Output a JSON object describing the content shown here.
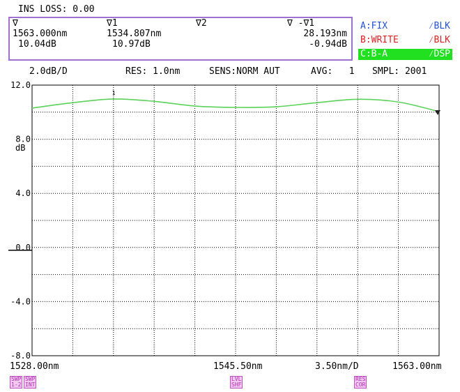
{
  "header": {
    "ins_loss": "INS LOSS: 0.00"
  },
  "markers": {
    "m0": {
      "symbol": "∇",
      "wavelength": "1563.000nm",
      "level": "10.04dB"
    },
    "m1": {
      "symbol": "∇1",
      "wavelength": "1534.807nm",
      "level": "10.97dB"
    },
    "m2": {
      "symbol": "∇2"
    },
    "delta": {
      "symbol": "∇ -∇1",
      "wavelength": "28.193nm",
      "level": "-0.94dB"
    }
  },
  "traces": [
    {
      "name": "A:FIX",
      "mode": "⁄BLK",
      "color": "#2050e0"
    },
    {
      "name": "B:WRITE",
      "mode": "⁄BLK",
      "color": "#e02020"
    },
    {
      "name": "C:B-A",
      "mode": "⁄DSP",
      "color": "#ffffff",
      "bg": "#20e020"
    }
  ],
  "settings": {
    "scale": "2.0dB/D",
    "res": "RES: 1.0nm",
    "sens": "SENS:NORM AUT",
    "avg": "AVG:   1",
    "smpl": "SMPL: 2001"
  },
  "bottom": {
    "start": "1528.00nm",
    "center": "1545.50nm",
    "span": "3.50nm/D",
    "stop": "1563.00nm"
  },
  "softkeys": [
    {
      "line1": "SWP",
      "line2": "1-2"
    },
    {
      "line1": "SWP",
      "line2": "INT"
    },
    {
      "line1": "LVL",
      "line2": "SHF"
    },
    {
      "line1": "RES",
      "line2": "COR"
    }
  ],
  "chart_data": {
    "type": "line",
    "xlim": [
      1528.0,
      1563.0
    ],
    "ylim": [
      -8.0,
      12.0
    ],
    "grid": true,
    "xlabel": "",
    "ylabel": "dB",
    "y_ticks": [
      "12.0",
      "8.0",
      "4.0",
      "0.0",
      "-4.0",
      "-8.0"
    ],
    "y_tick_values": [
      12.0,
      8.0,
      4.0,
      0.0,
      -4.0,
      -8.0
    ],
    "marker_label": "1",
    "line_color": "#5ad25a",
    "series": [
      {
        "x": [
          1528.0,
          1531.5,
          1535.0,
          1538.5,
          1542.0,
          1545.5,
          1549.0,
          1552.5,
          1556.0,
          1559.5,
          1563.0
        ],
        "values": [
          10.3,
          10.7,
          10.97,
          10.8,
          10.45,
          10.35,
          10.4,
          10.7,
          10.95,
          10.75,
          10.04
        ]
      }
    ]
  }
}
